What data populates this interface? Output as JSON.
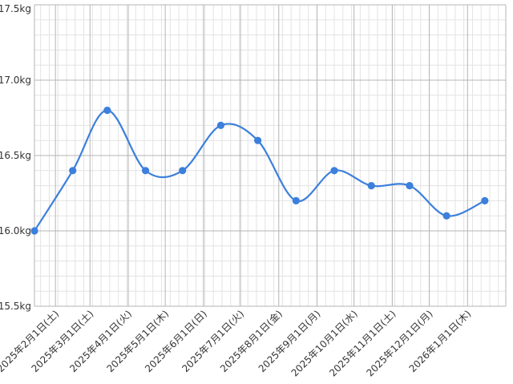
{
  "chart_data": {
    "type": "line",
    "title": "",
    "xlabel": "",
    "ylabel": "",
    "ylim": [
      15.5,
      17.5
    ],
    "y_unit": "kg",
    "y_ticks": [
      "15.5kg",
      "16.0kg",
      "16.5kg",
      "17.0kg",
      "17.5kg"
    ],
    "x_ticks": [
      "2025年2月1日(土)",
      "2025年3月1日(土)",
      "2025年4月1日(火)",
      "2025年5月1日(木)",
      "2025年6月1日(日)",
      "2025年7月1日(火)",
      "2025年8月1日(金)",
      "2025年9月1日(月)",
      "2025年10月1日(水)",
      "2025年11月1日(土)",
      "2025年12月1日(月)",
      "2026年1月1日(木)"
    ],
    "grid": true,
    "series": [
      {
        "color": "#3c7fdc",
        "x": [
          "2025-01-15",
          "2025-02-15",
          "2025-03-15",
          "2025-04-15",
          "2025-05-15",
          "2025-06-15",
          "2025-07-15",
          "2025-08-15",
          "2025-09-15",
          "2025-10-15",
          "2025-11-15",
          "2025-12-15",
          "2026-01-15"
        ],
        "values": [
          16.0,
          16.4,
          16.8,
          16.4,
          16.4,
          16.7,
          16.6,
          16.2,
          16.4,
          16.3,
          16.3,
          16.1,
          16.2
        ]
      }
    ]
  }
}
